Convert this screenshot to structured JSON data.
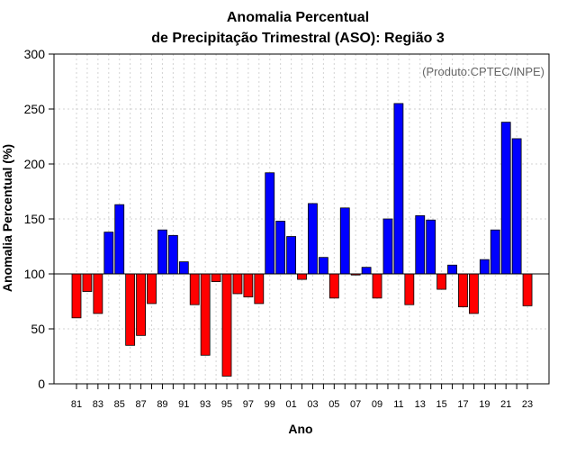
{
  "chart_data": {
    "type": "bar",
    "title_line1": "Anomalia Percentual",
    "title_line2": "de Precipitação Trimestral (ASO): Região 3",
    "xlabel": "Ano",
    "ylabel": "Anomalia Percentual (%)",
    "credit": "(Produto:CPTEC/INPE)",
    "baseline": 100,
    "ylim": [
      0,
      300
    ],
    "yticks": [
      0,
      50,
      100,
      150,
      200,
      250,
      300
    ],
    "xtick_labels": [
      "81",
      "83",
      "85",
      "87",
      "89",
      "91",
      "93",
      "95",
      "97",
      "99",
      "01",
      "03",
      "05",
      "07",
      "09",
      "11",
      "13",
      "15",
      "17",
      "19",
      "21",
      "23"
    ],
    "years": [
      1981,
      1982,
      1983,
      1984,
      1985,
      1986,
      1987,
      1988,
      1989,
      1990,
      1991,
      1992,
      1993,
      1994,
      1995,
      1996,
      1997,
      1998,
      1999,
      2000,
      2001,
      2002,
      2003,
      2004,
      2005,
      2006,
      2007,
      2008,
      2009,
      2010,
      2011,
      2012,
      2013,
      2014,
      2015,
      2016,
      2017,
      2018,
      2019,
      2020,
      2021,
      2022,
      2023
    ],
    "values": [
      60,
      84,
      64,
      138,
      163,
      35,
      44,
      73,
      140,
      135,
      111,
      72,
      26,
      93,
      7,
      82,
      79,
      73,
      192,
      148,
      134,
      95,
      164,
      115,
      78,
      160,
      99,
      106,
      78,
      150,
      255,
      72,
      153,
      149,
      86,
      108,
      70,
      64,
      113,
      140,
      238,
      223,
      71
    ],
    "colors": {
      "above": "#0000ff",
      "below": "#ff0000",
      "grid": "#d3d3d3",
      "axis": "#000000"
    }
  }
}
